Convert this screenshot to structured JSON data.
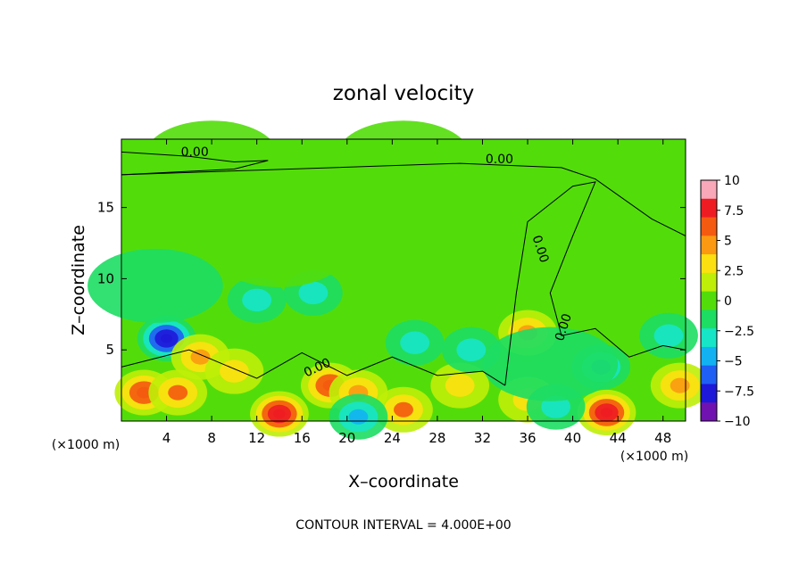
{
  "chart_data": {
    "type": "heatmap",
    "title": "zonal velocity",
    "xlabel": "X–coordinate",
    "ylabel": "Z–coordinate",
    "x_unit": "(×1000 m)",
    "y_unit": "(×1000 m)",
    "xlim": [
      0,
      50
    ],
    "ylim": [
      0,
      19.8
    ],
    "x_ticks": [
      4,
      8,
      12,
      16,
      20,
      24,
      28,
      32,
      36,
      40,
      44,
      48
    ],
    "x_tick_labels": [
      "4",
      "8",
      "12",
      "16",
      "20",
      "24",
      "28",
      "32",
      "36",
      "40",
      "44",
      "48"
    ],
    "y_ticks": [
      5,
      10,
      15
    ],
    "y_tick_labels": [
      "5",
      "10",
      "15"
    ],
    "colorbar": {
      "min": -10,
      "max": 10,
      "ticks": [
        10,
        7.5,
        5,
        2.5,
        0,
        -2.5,
        -5,
        -7.5,
        -10
      ],
      "tick_labels": [
        "10",
        "7.5",
        "5",
        "2.5",
        "0",
        "−2.5",
        "−5",
        "−7.5",
        "−10"
      ],
      "colors": [
        "#f8a8b8",
        "#ee1c22",
        "#f45a10",
        "#fb9a12",
        "#fde010",
        "#bfee08",
        "#52dd0a",
        "#1ddd63",
        "#17e5c8",
        "#12b2f2",
        "#1f5ff4",
        "#1e18d8",
        "#6f12b0"
      ]
    },
    "contour_labels": [
      "0.00",
      "0.00",
      "0.00",
      "0.00",
      "0.00"
    ],
    "contour_interval_text": "CONTOUR INTERVAL = 4.000E+00",
    "features": [
      {
        "x": 4,
        "z": 5.8,
        "value": -9
      },
      {
        "x": 2,
        "z": 2.0,
        "value": 7
      },
      {
        "x": 5,
        "z": 2.0,
        "value": 6
      },
      {
        "x": 7,
        "z": 4.5,
        "value": 5
      },
      {
        "x": 10,
        "z": 3.5,
        "value": 4
      },
      {
        "x": 14,
        "z": 0.5,
        "value": 9
      },
      {
        "x": 18.5,
        "z": 2.5,
        "value": 7
      },
      {
        "x": 21,
        "z": 2.0,
        "value": 5
      },
      {
        "x": 25,
        "z": 0.8,
        "value": 6
      },
      {
        "x": 21,
        "z": 0.3,
        "value": -5
      },
      {
        "x": 30,
        "z": 2.5,
        "value": 3
      },
      {
        "x": 36,
        "z": 6.2,
        "value": 5
      },
      {
        "x": 36,
        "z": 1.5,
        "value": 4
      },
      {
        "x": 43,
        "z": 0.6,
        "value": 9
      },
      {
        "x": 42.5,
        "z": 3.8,
        "value": -5
      },
      {
        "x": 38.5,
        "z": 1.0,
        "value": -3
      },
      {
        "x": 49.5,
        "z": 2.5,
        "value": 5
      },
      {
        "x": 48.5,
        "z": 6.0,
        "value": -3
      },
      {
        "x": 12,
        "z": 8.5,
        "value": -3
      },
      {
        "x": 17,
        "z": 9.0,
        "value": -3
      },
      {
        "x": 3,
        "z": 9.5,
        "value": -1
      },
      {
        "x": 31,
        "z": 5.0,
        "value": -3
      },
      {
        "x": 26,
        "z": 5.5,
        "value": -3
      },
      {
        "x": 38,
        "z": 4.0,
        "value": -2
      },
      {
        "x": 20,
        "z": 15,
        "value": -0.5
      },
      {
        "x": 30,
        "z": 13,
        "value": -0.5
      },
      {
        "x": 25,
        "z": 18.5,
        "value": 0.6
      },
      {
        "x": 8,
        "z": 18.5,
        "value": 0.4
      },
      {
        "x": 14,
        "z": 12,
        "value": 0.3
      }
    ]
  }
}
